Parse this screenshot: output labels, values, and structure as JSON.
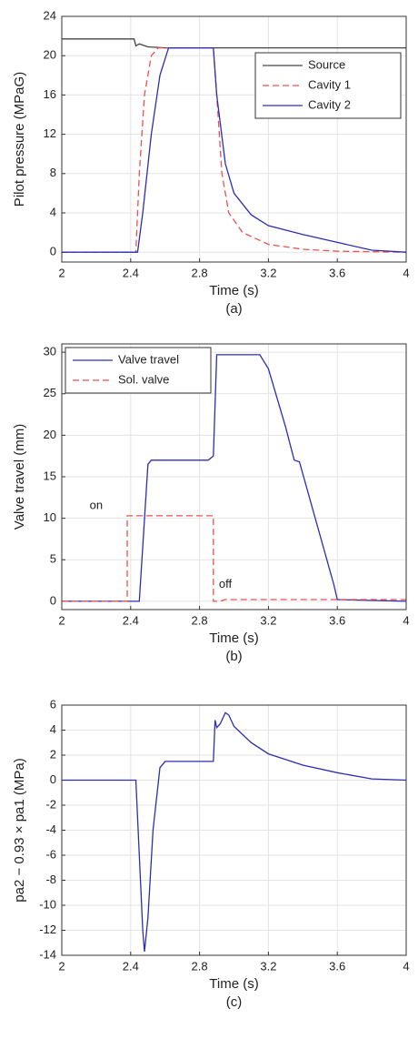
{
  "chart_data": [
    {
      "type": "line",
      "caption": "(a)",
      "xlabel": "Time (s)",
      "ylabel": "Pilot pressure (MPaG)",
      "xlim": [
        2,
        4
      ],
      "xticks": [
        2,
        2.4,
        2.8,
        3.2,
        3.6,
        4
      ],
      "ylim": [
        -1,
        24
      ],
      "yticks": [
        0,
        4,
        8,
        12,
        16,
        20,
        24
      ],
      "grid": true,
      "legend": "upper right",
      "series": [
        {
          "name": "Source",
          "color": "#444444",
          "style": "solid",
          "x": [
            2,
            2.42,
            2.43,
            2.45,
            2.5,
            2.6,
            4
          ],
          "values": [
            21.7,
            21.7,
            21.0,
            21.2,
            20.9,
            20.8,
            20.8
          ]
        },
        {
          "name": "Cavity 1",
          "color": "#e8514f",
          "style": "dashed",
          "x": [
            2,
            2.43,
            2.45,
            2.48,
            2.52,
            2.56,
            2.88,
            2.9,
            2.93,
            2.97,
            3.05,
            3.2,
            3.4,
            3.6,
            4
          ],
          "values": [
            0,
            0,
            8,
            16,
            20,
            20.8,
            20.8,
            16,
            8,
            4,
            2,
            0.8,
            0.3,
            0.1,
            0
          ]
        },
        {
          "name": "Cavity 2",
          "color": "#2d2db4",
          "style": "solid",
          "x": [
            2,
            2.44,
            2.47,
            2.52,
            2.57,
            2.62,
            2.88,
            2.9,
            2.95,
            3.0,
            3.1,
            3.2,
            3.4,
            3.6,
            3.8,
            4
          ],
          "values": [
            0,
            0,
            4,
            12,
            18,
            20.8,
            20.8,
            16,
            9,
            6,
            3.8,
            2.7,
            1.8,
            1,
            0.2,
            0
          ]
        }
      ]
    },
    {
      "type": "line",
      "caption": "(b)",
      "xlabel": "Time (s)",
      "ylabel": "Valve travel (mm)",
      "xlim": [
        2,
        4
      ],
      "xticks": [
        2,
        2.4,
        2.8,
        3.2,
        3.6,
        4
      ],
      "ylim": [
        -1,
        31
      ],
      "yticks": [
        0,
        5,
        10,
        15,
        20,
        25,
        30
      ],
      "grid": true,
      "legend": "upper left",
      "annotations": [
        "on",
        "off"
      ],
      "series": [
        {
          "name": "Valve travel",
          "color": "#2d2db4",
          "style": "solid",
          "x": [
            2,
            2.45,
            2.5,
            2.52,
            2.85,
            2.88,
            2.9,
            3.15,
            3.2,
            3.3,
            3.35,
            3.38,
            3.58,
            3.6,
            4
          ],
          "values": [
            0,
            0,
            16.5,
            17,
            17,
            17.5,
            29.7,
            29.7,
            28,
            21,
            17,
            16.8,
            2,
            0.2,
            0
          ]
        },
        {
          "name": "Sol. valve",
          "color": "#e8514f",
          "style": "dashed",
          "x": [
            2,
            2.38,
            2.38,
            2.88,
            2.88,
            2.92,
            2.95,
            4
          ],
          "values": [
            0,
            0,
            10.3,
            10.3,
            0,
            0,
            0.2,
            0.2
          ]
        }
      ]
    },
    {
      "type": "line",
      "caption": "(c)",
      "xlabel": "Time (s)",
      "ylabel": "pa2 − 0.93 × pa1 (MPa)",
      "xlim": [
        2,
        4
      ],
      "xticks": [
        2,
        2.4,
        2.8,
        3.2,
        3.6,
        4
      ],
      "ylim": [
        -14,
        6
      ],
      "yticks": [
        -14,
        -12,
        -10,
        -8,
        -6,
        -4,
        -2,
        0,
        2,
        4,
        6
      ],
      "grid": true,
      "series": [
        {
          "color": "#2d2db4",
          "style": "solid",
          "x": [
            2,
            2.43,
            2.45,
            2.47,
            2.48,
            2.5,
            2.53,
            2.57,
            2.6,
            2.88,
            2.89,
            2.9,
            2.92,
            2.95,
            2.97,
            3.0,
            3.1,
            3.2,
            3.4,
            3.6,
            3.8,
            4
          ],
          "values": [
            0,
            0,
            -6,
            -12,
            -13.7,
            -11,
            -4,
            1,
            1.5,
            1.5,
            4.8,
            4.2,
            4.5,
            5.4,
            5.2,
            4.3,
            3,
            2.1,
            1.2,
            0.6,
            0.1,
            0
          ]
        }
      ]
    }
  ]
}
